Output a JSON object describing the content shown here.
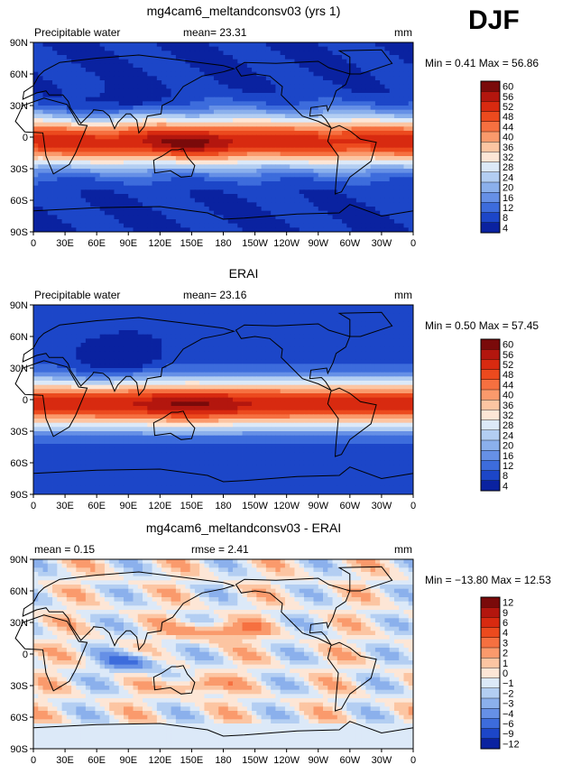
{
  "season": "DJF",
  "chart_data": [
    {
      "type": "heatmap",
      "title": "mg4cam6_meltandconsv03 (yrs 1)",
      "variable": "Precipitable water",
      "mean_label": "mean=",
      "mean_value": "23.31",
      "units": "mm",
      "min_label": "Min =",
      "min_value": "0.41",
      "max_label": "Max =",
      "max_value": "56.86",
      "xlim": [
        0,
        360
      ],
      "ylim": [
        -90,
        90
      ],
      "x_ticks": [
        "0",
        "30E",
        "60E",
        "90E",
        "120E",
        "150E",
        "180",
        "150W",
        "120W",
        "90W",
        "60W",
        "30W",
        "0"
      ],
      "y_ticks": [
        "90N",
        "60N",
        "30N",
        "0",
        "30S",
        "60S",
        "90S"
      ],
      "colorbar_levels": [
        "60",
        "56",
        "52",
        "48",
        "44",
        "40",
        "36",
        "32",
        "28",
        "24",
        "20",
        "16",
        "12",
        "8",
        "4"
      ],
      "colorbar_colors": [
        "#7a0a0a",
        "#b3160e",
        "#d82a10",
        "#ec4a1e",
        "#f67040",
        "#fa9a6c",
        "#fcc5a2",
        "#fde6d6",
        "#dce9f8",
        "#b3cef2",
        "#8bb0ec",
        "#6690e6",
        "#3d6cdc",
        "#1c46c8",
        "#0a22a0"
      ],
      "grid": false,
      "legend_position": "right"
    },
    {
      "type": "heatmap",
      "title": "ERAI",
      "variable": "Precipitable water",
      "mean_label": "mean=",
      "mean_value": "23.16",
      "units": "mm",
      "min_label": "Min =",
      "min_value": "0.50",
      "max_label": "Max =",
      "max_value": "57.45",
      "xlim": [
        0,
        360
      ],
      "ylim": [
        -90,
        90
      ],
      "x_ticks": [
        "0",
        "30E",
        "60E",
        "90E",
        "120E",
        "150E",
        "180",
        "150W",
        "120W",
        "90W",
        "60W",
        "30W",
        "0"
      ],
      "y_ticks": [
        "90N",
        "60N",
        "30N",
        "0",
        "30S",
        "60S",
        "90S"
      ],
      "colorbar_levels": [
        "60",
        "56",
        "52",
        "48",
        "44",
        "40",
        "36",
        "32",
        "28",
        "24",
        "20",
        "16",
        "12",
        "8",
        "4"
      ],
      "colorbar_colors": [
        "#7a0a0a",
        "#b3160e",
        "#d82a10",
        "#ec4a1e",
        "#f67040",
        "#fa9a6c",
        "#fcc5a2",
        "#fde6d6",
        "#dce9f8",
        "#b3cef2",
        "#8bb0ec",
        "#6690e6",
        "#3d6cdc",
        "#1c46c8",
        "#0a22a0"
      ],
      "grid": false,
      "legend_position": "right"
    },
    {
      "type": "heatmap",
      "title": "mg4cam6_meltandconsv03 - ERAI",
      "mean_label": "mean =",
      "mean_value": "0.15",
      "rmse_label": "rmse =",
      "rmse_value": "2.41",
      "units": "mm",
      "min_label": "Min =",
      "min_value": "−13.80",
      "max_label": "Max =",
      "max_value": "12.53",
      "xlim": [
        0,
        360
      ],
      "ylim": [
        -90,
        90
      ],
      "x_ticks": [
        "0",
        "30E",
        "60E",
        "90E",
        "120E",
        "150E",
        "180",
        "150W",
        "120W",
        "90W",
        "60W",
        "30W",
        "0"
      ],
      "y_ticks": [
        "90N",
        "60N",
        "30N",
        "0",
        "30S",
        "60S",
        "90S"
      ],
      "colorbar_levels": [
        "12",
        "9",
        "6",
        "4",
        "3",
        "2",
        "1",
        "0",
        "−1",
        "−2",
        "−3",
        "−4",
        "−6",
        "−9",
        "−12"
      ],
      "colorbar_colors": [
        "#7a0a0a",
        "#b3160e",
        "#d82a10",
        "#ec4a1e",
        "#f67040",
        "#fa9a6c",
        "#fcc5a2",
        "#fde6d6",
        "#dce9f8",
        "#b3cef2",
        "#8bb0ec",
        "#6690e6",
        "#3d6cdc",
        "#1c46c8",
        "#0a22a0"
      ],
      "grid": false,
      "legend_position": "right"
    }
  ]
}
